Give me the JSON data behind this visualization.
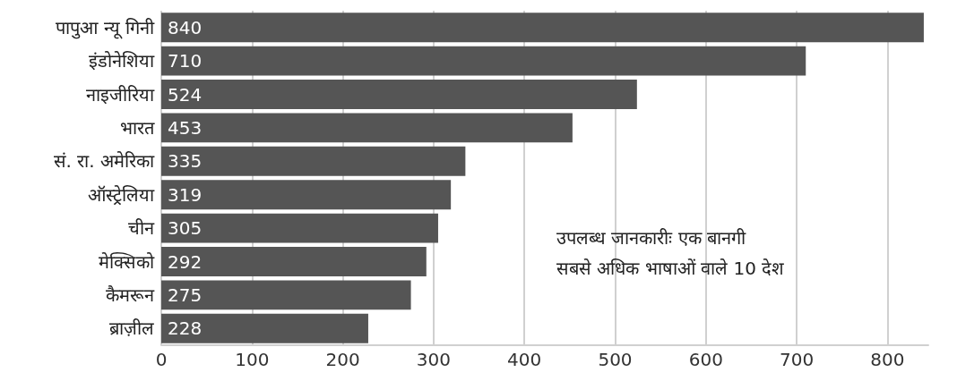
{
  "chart_data": {
    "type": "bar",
    "orientation": "horizontal",
    "title": "उपलब्ध जानकारीः एक बानगी",
    "subtitle": "सबसे अधिक भाषाओं वाले 10 देश",
    "categories": [
      "पापुआ न्यू गिनी",
      "इंडोनेशिया",
      "नाइजीरिया",
      "भारत",
      "सं. रा. अमेरिका",
      "ऑस्ट्रेलिया",
      "चीन",
      "मेक्सिको",
      "कैमरून",
      "ब्राज़ील"
    ],
    "values": [
      840,
      710,
      524,
      453,
      335,
      319,
      305,
      292,
      275,
      228
    ],
    "color": "#555555",
    "data_labels": true,
    "xlim": [
      0,
      845
    ],
    "xticks": [
      0,
      100,
      200,
      300,
      400,
      500,
      600,
      700,
      800
    ],
    "grid": "x"
  }
}
